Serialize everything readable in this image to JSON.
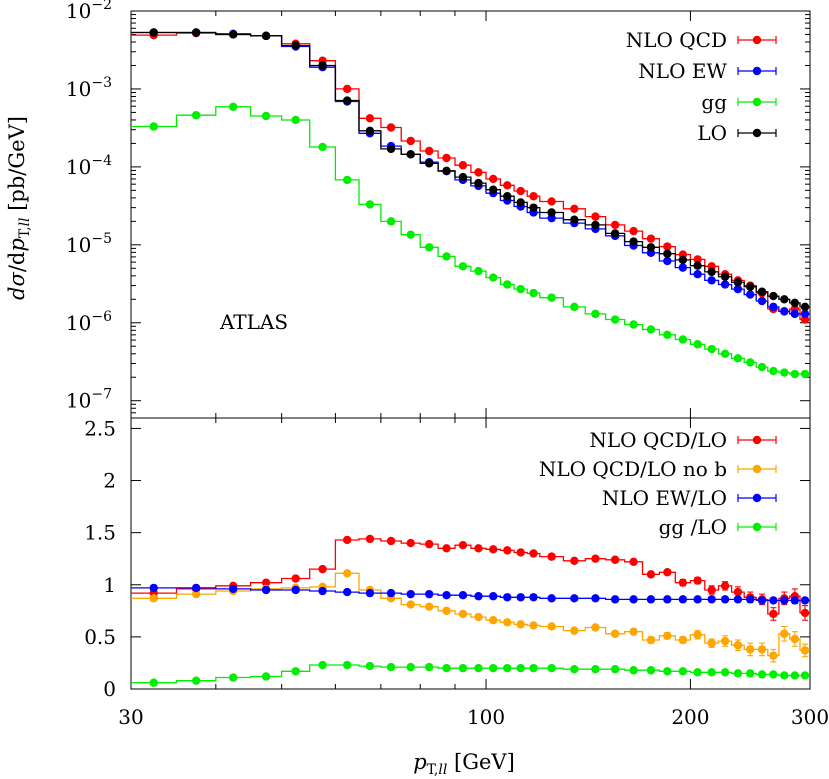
{
  "chart_data": [
    {
      "type": "line",
      "panel": "top",
      "title": "",
      "xlabel": "",
      "ylabel": "dσ/dp_T,ll [pb/GeV]",
      "log_y": true,
      "log_x": true,
      "xlim": [
        30,
        300
      ],
      "ylim": [
        6e-08,
        0.01
      ],
      "y_ticks": [
        {
          "base": "10",
          "exp": "−2",
          "value": 0.01
        },
        {
          "base": "10",
          "exp": "−3",
          "value": 0.001
        },
        {
          "base": "10",
          "exp": "−4",
          "value": 0.0001
        },
        {
          "base": "10",
          "exp": "−5",
          "value": 1e-05
        },
        {
          "base": "10",
          "exp": "−6",
          "value": 1e-06
        },
        {
          "base": "10",
          "exp": "−7",
          "value": 1e-07
        }
      ],
      "annotation": "ATLAS",
      "legend_position": "top-right",
      "bin_edges": [
        30,
        35,
        40,
        45,
        50,
        55,
        60,
        65,
        70,
        75,
        80,
        85,
        90,
        95,
        100,
        105,
        110,
        115,
        120,
        130,
        140,
        150,
        160,
        170,
        180,
        190,
        200,
        210,
        220,
        230,
        240,
        250,
        260,
        270,
        280,
        290,
        300
      ],
      "series": [
        {
          "name": "NLO QCD",
          "color": "#ff0000",
          "values": [
            0.0049,
            0.0052,
            0.005,
            0.0048,
            0.0038,
            0.0023,
            0.001,
            0.00042,
            0.00032,
            0.000215,
            0.00016,
            0.00013,
            0.000105,
            8.5e-05,
            7e-05,
            5.8e-05,
            4.9e-05,
            4.2e-05,
            3.6e-05,
            2.9e-05,
            2.3e-05,
            1.8e-05,
            1.5e-05,
            1.2e-05,
            9.5e-06,
            7.5e-06,
            6.5e-06,
            5.3e-06,
            4.2e-06,
            3.5e-06,
            3e-06,
            2.4e-06,
            1.5e-06,
            1.4e-06,
            1.5e-06,
            1.1e-06
          ]
        },
        {
          "name": "NLO EW",
          "color": "#0000ff",
          "values": [
            0.0053,
            0.0053,
            0.0051,
            0.0048,
            0.0035,
            0.0019,
            0.00069,
            0.00027,
            0.000185,
            0.000145,
            0.000115,
            8.8e-05,
            6.8e-05,
            5.7e-05,
            4.6e-05,
            3.7e-05,
            3.1e-05,
            2.6e-05,
            2.2e-05,
            1.9e-05,
            1.6e-05,
            1.3e-05,
            9.8e-06,
            7.9e-06,
            6.2e-06,
            5.1e-06,
            4.2e-06,
            3.5e-06,
            3.1e-06,
            2.7e-06,
            2.3e-06,
            1.9e-06,
            1.6e-06,
            1.4e-06,
            1.3e-06,
            1.3e-06
          ]
        },
        {
          "name": "gg",
          "color": "#00ee00",
          "values": [
            0.00033,
            0.00046,
            0.00059,
            0.00045,
            0.0004,
            0.00018,
            6.8e-05,
            3.3e-05,
            2e-05,
            1.35e-05,
            9.3e-06,
            7.1e-06,
            5.3e-06,
            4.6e-06,
            3.8e-06,
            3.1e-06,
            2.7e-06,
            2.4e-06,
            2.1e-06,
            1.6e-06,
            1.3e-06,
            1.1e-06,
            9.5e-07,
            8.2e-07,
            7e-07,
            6.1e-07,
            5.3e-07,
            4.6e-07,
            4e-07,
            3.5e-07,
            3.1e-07,
            2.7e-07,
            2.4e-07,
            2.3e-07,
            2.2e-07,
            2.2e-07
          ]
        },
        {
          "name": "LO",
          "color": "#000000",
          "values": [
            0.0053,
            0.0053,
            0.005,
            0.0048,
            0.0036,
            0.002,
            0.00071,
            0.00029,
            0.00017,
            0.000145,
            0.000111,
            8.9e-05,
            7.4e-05,
            6.2e-05,
            5.1e-05,
            4.2e-05,
            3.5e-05,
            3e-05,
            2.6e-05,
            2.1e-05,
            1.8e-05,
            1.4e-05,
            1.1e-05,
            9.3e-06,
            7.7e-06,
            6.4e-06,
            5.4e-06,
            4.5e-06,
            3.9e-06,
            3.3e-06,
            2.9e-06,
            2.5e-06,
            2.2e-06,
            2e-06,
            1.8e-06,
            1.6e-06
          ]
        }
      ]
    },
    {
      "type": "line",
      "panel": "bottom",
      "title": "",
      "xlabel": "p_T,ll [GeV]",
      "ylabel": "",
      "log_x": true,
      "xlim": [
        30,
        300
      ],
      "ylim": [
        0,
        2.6
      ],
      "y_ticks": [
        "0",
        "0.5",
        "1",
        "1.5",
        "2",
        "2.5"
      ],
      "x_ticks": [
        "30",
        "100",
        "200",
        "300"
      ],
      "legend_position": "top-right",
      "bin_edges": [
        30,
        35,
        40,
        45,
        50,
        55,
        60,
        65,
        70,
        75,
        80,
        85,
        90,
        95,
        100,
        105,
        110,
        115,
        120,
        130,
        140,
        150,
        160,
        170,
        180,
        190,
        200,
        210,
        220,
        230,
        240,
        250,
        260,
        270,
        280,
        290,
        300
      ],
      "series": [
        {
          "name": "NLO QCD/LO",
          "color": "#ff0000",
          "values": [
            0.92,
            0.96,
            0.99,
            1.02,
            1.06,
            1.15,
            1.43,
            1.44,
            1.42,
            1.4,
            1.39,
            1.35,
            1.38,
            1.35,
            1.34,
            1.33,
            1.31,
            1.3,
            1.27,
            1.23,
            1.25,
            1.24,
            1.22,
            1.1,
            1.12,
            1.02,
            1.04,
            0.95,
            0.99,
            0.93,
            0.88,
            0.86,
            0.72,
            0.87,
            0.89,
            0.73
          ],
          "errors": [
            0.01,
            0.01,
            0.01,
            0.01,
            0.01,
            0.01,
            0.01,
            0.01,
            0.01,
            0.01,
            0.01,
            0.01,
            0.01,
            0.01,
            0.01,
            0.01,
            0.01,
            0.01,
            0.01,
            0.01,
            0.01,
            0.01,
            0.01,
            0.02,
            0.02,
            0.03,
            0.03,
            0.04,
            0.04,
            0.05,
            0.05,
            0.05,
            0.06,
            0.06,
            0.07,
            0.07
          ]
        },
        {
          "name": "NLO QCD/LO no b",
          "color": "#ffa500",
          "values": [
            0.87,
            0.91,
            0.94,
            0.96,
            0.97,
            0.98,
            1.11,
            0.95,
            0.87,
            0.81,
            0.79,
            0.75,
            0.72,
            0.69,
            0.66,
            0.64,
            0.62,
            0.61,
            0.6,
            0.56,
            0.59,
            0.53,
            0.55,
            0.47,
            0.51,
            0.47,
            0.52,
            0.44,
            0.46,
            0.42,
            0.38,
            0.38,
            0.32,
            0.53,
            0.48,
            0.37
          ],
          "errors": [
            0.01,
            0.01,
            0.01,
            0.01,
            0.01,
            0.01,
            0.01,
            0.01,
            0.01,
            0.01,
            0.01,
            0.01,
            0.01,
            0.01,
            0.01,
            0.01,
            0.01,
            0.01,
            0.02,
            0.02,
            0.02,
            0.02,
            0.02,
            0.03,
            0.03,
            0.03,
            0.04,
            0.04,
            0.05,
            0.05,
            0.06,
            0.06,
            0.06,
            0.07,
            0.07,
            0.06
          ]
        },
        {
          "name": "NLO EW/LO",
          "color": "#0000ff",
          "values": [
            0.97,
            0.97,
            0.96,
            0.95,
            0.95,
            0.94,
            0.93,
            0.92,
            0.92,
            0.91,
            0.91,
            0.9,
            0.9,
            0.89,
            0.89,
            0.88,
            0.88,
            0.88,
            0.87,
            0.87,
            0.87,
            0.86,
            0.86,
            0.86,
            0.86,
            0.86,
            0.86,
            0.86,
            0.86,
            0.86,
            0.86,
            0.85,
            0.85,
            0.85,
            0.85,
            0.85
          ],
          "errors": [
            0.005,
            0.005,
            0.005,
            0.005,
            0.005,
            0.005,
            0.005,
            0.005,
            0.005,
            0.005,
            0.005,
            0.005,
            0.005,
            0.005,
            0.005,
            0.005,
            0.005,
            0.005,
            0.005,
            0.005,
            0.005,
            0.005,
            0.005,
            0.005,
            0.005,
            0.005,
            0.005,
            0.005,
            0.005,
            0.005,
            0.005,
            0.005,
            0.005,
            0.005,
            0.005,
            0.005
          ]
        },
        {
          "name": "gg /LO",
          "color": "#00ee00",
          "values": [
            0.06,
            0.08,
            0.11,
            0.12,
            0.17,
            0.23,
            0.23,
            0.22,
            0.21,
            0.21,
            0.21,
            0.2,
            0.2,
            0.2,
            0.2,
            0.2,
            0.2,
            0.2,
            0.2,
            0.19,
            0.19,
            0.19,
            0.18,
            0.18,
            0.17,
            0.17,
            0.16,
            0.16,
            0.16,
            0.15,
            0.15,
            0.14,
            0.14,
            0.13,
            0.13,
            0.13
          ],
          "errors": [
            0.003,
            0.003,
            0.003,
            0.003,
            0.003,
            0.003,
            0.003,
            0.003,
            0.003,
            0.003,
            0.003,
            0.003,
            0.003,
            0.003,
            0.003,
            0.003,
            0.003,
            0.003,
            0.003,
            0.003,
            0.003,
            0.003,
            0.003,
            0.003,
            0.003,
            0.003,
            0.003,
            0.003,
            0.003,
            0.003,
            0.003,
            0.003,
            0.003,
            0.003,
            0.003,
            0.003
          ]
        }
      ]
    }
  ]
}
